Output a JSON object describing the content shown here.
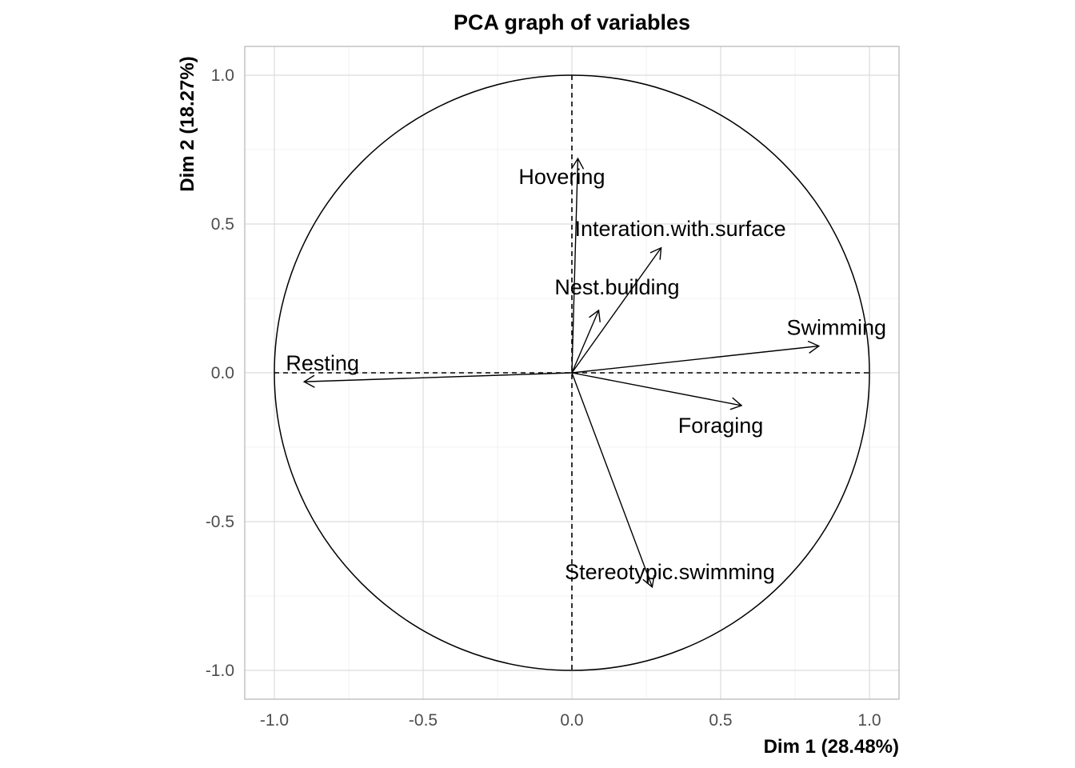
{
  "chart_data": {
    "type": "scatter",
    "subtype": "pca-correlation-circle",
    "title": "PCA graph of variables",
    "xlabel": "Dim 1 (28.48%)",
    "ylabel": "Dim 2 (18.27%)",
    "xlim": [
      -1.1,
      1.1
    ],
    "ylim": [
      -1.1,
      1.1
    ],
    "x_ticks": [
      -1.0,
      -0.5,
      0.0,
      0.5,
      1.0
    ],
    "y_ticks": [
      -1.0,
      -0.5,
      0.0,
      0.5,
      1.0
    ],
    "x_tick_labels": [
      "-1.0",
      "-0.5",
      "0.0",
      "0.5",
      "1.0"
    ],
    "y_tick_labels": [
      "-1.0",
      "-0.5",
      "0.0",
      "0.5",
      "1.0"
    ],
    "grid": true,
    "unit_circle": true,
    "variables": [
      {
        "name": "Hovering",
        "x": 0.02,
        "y": 0.72
      },
      {
        "name": "Interation.with.surface",
        "x": 0.3,
        "y": 0.42
      },
      {
        "name": "Nest.building",
        "x": 0.09,
        "y": 0.21
      },
      {
        "name": "Swimming",
        "x": 0.83,
        "y": 0.09
      },
      {
        "name": "Resting",
        "x": -0.9,
        "y": -0.03
      },
      {
        "name": "Foraging",
        "x": 0.57,
        "y": -0.11
      },
      {
        "name": "Stereotypic.swimming",
        "x": 0.27,
        "y": -0.72
      }
    ]
  }
}
